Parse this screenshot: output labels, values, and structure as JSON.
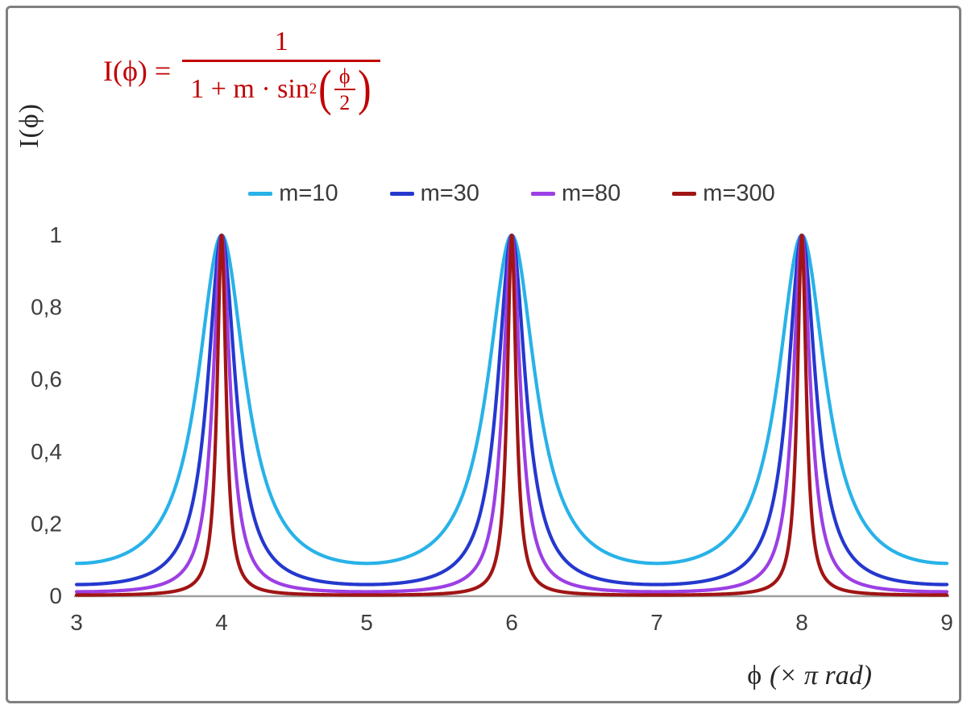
{
  "chart_data": {
    "type": "line",
    "title": "",
    "formula_text": "I(ϕ) = 1 / (1 + m·sin²(ϕ/2))",
    "function": "I(x) = 1 / (1 + m * sin(pi*x/2)^2), x in units of pi rad",
    "xlabel": "ϕ (× π rad)",
    "xlabel_parts": {
      "symbol": "ϕ",
      "units": "(× π rad)"
    },
    "ylabel": "I(ϕ)",
    "xlim": [
      3,
      9
    ],
    "ylim": [
      0,
      1
    ],
    "grid": false,
    "legend_position": "top-center",
    "peaks": {
      "x": [
        4,
        6,
        8
      ],
      "y": 1
    },
    "x_ticks": [
      {
        "v": 3,
        "label": "3"
      },
      {
        "v": 4,
        "label": "4"
      },
      {
        "v": 5,
        "label": "5"
      },
      {
        "v": 6,
        "label": "6"
      },
      {
        "v": 7,
        "label": "7"
      },
      {
        "v": 8,
        "label": "8"
      },
      {
        "v": 9,
        "label": "9"
      }
    ],
    "y_ticks": [
      {
        "v": 0,
        "label": "0"
      },
      {
        "v": 0.2,
        "label": "0,2"
      },
      {
        "v": 0.4,
        "label": "0,4"
      },
      {
        "v": 0.6,
        "label": "0,6"
      },
      {
        "v": 0.8,
        "label": "0,8"
      },
      {
        "v": 1,
        "label": "1"
      }
    ],
    "series": [
      {
        "name": "m=10",
        "m": 10,
        "color": "#28B2E8"
      },
      {
        "name": "m=30",
        "m": 30,
        "color": "#2438CE"
      },
      {
        "name": "m=80",
        "m": 80,
        "color": "#9C3FE4"
      },
      {
        "name": "m=300",
        "m": 300,
        "color": "#A01414"
      }
    ]
  },
  "formula": {
    "lhs": "I(ϕ) =",
    "numerator": "1",
    "den_text": "1 + m · sin",
    "den_sup": "2",
    "lparen": "(",
    "rparen": ")",
    "inner_num": "ϕ",
    "inner_den": "2",
    "color": "#C00000"
  },
  "colors": {
    "background": "#FFFFFF",
    "frame": "#808080",
    "axis": "#9D9D9D",
    "tick_text": "#3F3F3F",
    "axis_title_text": "#262626",
    "formula": "#C00000"
  }
}
